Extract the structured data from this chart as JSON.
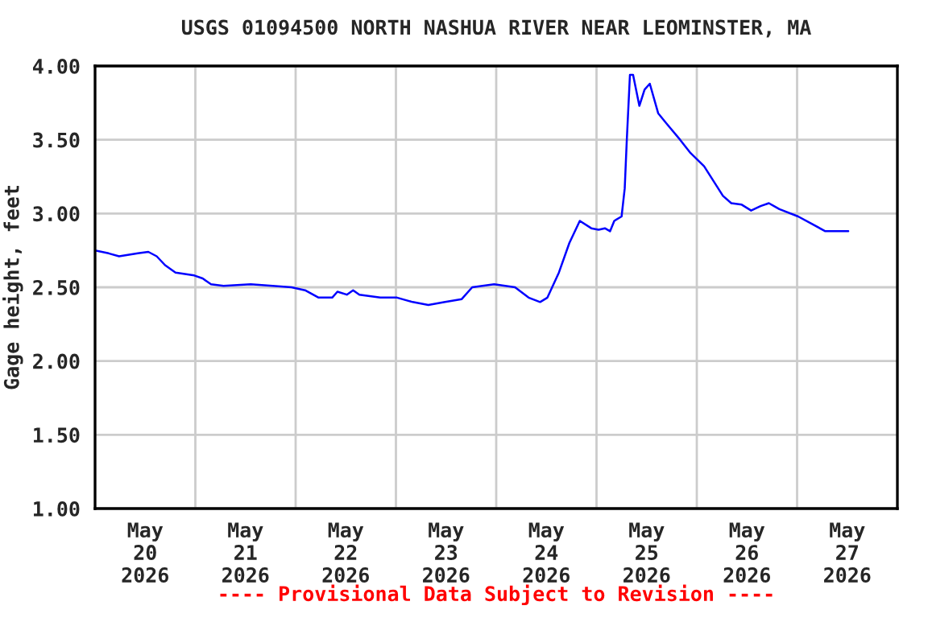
{
  "chart_data": {
    "type": "line",
    "title": "USGS 01094500 NORTH NASHUA RIVER NEAR LEOMINSTER, MA",
    "ylabel": "Gage height, feet",
    "annotations": [
      "---- Provisional Data Subject to Revision ----"
    ],
    "xlim": [
      "2026-05-20T00:00",
      "2026-05-28T00:00"
    ],
    "xticks": [
      {
        "value": "2026-05-20T12:00",
        "label": "May\n20\n2026"
      },
      {
        "value": "2026-05-21T12:00",
        "label": "May\n21\n2026"
      },
      {
        "value": "2026-05-22T12:00",
        "label": "May\n22\n2026"
      },
      {
        "value": "2026-05-23T12:00",
        "label": "May\n23\n2026"
      },
      {
        "value": "2026-05-24T12:00",
        "label": "May\n24\n2026"
      },
      {
        "value": "2026-05-25T12:00",
        "label": "May\n25\n2026"
      },
      {
        "value": "2026-05-26T12:00",
        "label": "May\n26\n2026"
      },
      {
        "value": "2026-05-27T12:00",
        "label": "May\n27\n2026"
      },
      {
        "value": "2026-05-21T00:00",
        "label": null
      },
      {
        "value": "2026-05-22T00:00",
        "label": null
      },
      {
        "value": "2026-05-23T00:00",
        "label": null
      },
      {
        "value": "2026-05-24T00:00",
        "label": null
      },
      {
        "value": "2026-05-25T00:00",
        "label": null
      },
      {
        "value": "2026-05-26T00:00",
        "label": null
      },
      {
        "value": "2026-05-27T00:00",
        "label": null
      }
    ],
    "ylim": [
      1.0,
      4.0
    ],
    "yticks": [
      {
        "value": 1.0,
        "label": "1.00"
      },
      {
        "value": 1.5,
        "label": "1.50"
      },
      {
        "value": 2.0,
        "label": "2.00"
      },
      {
        "value": 2.5,
        "label": "2.50"
      },
      {
        "value": 3.0,
        "label": "3.00"
      },
      {
        "value": 3.5,
        "label": "3.50"
      },
      {
        "value": 4.0,
        "label": "4.00"
      }
    ],
    "grid": true,
    "legend": false,
    "marker": "none",
    "line_style": "solid",
    "series": [
      {
        "color": "#0000ff",
        "x": [
          "2026-05-20T00:00",
          "2026-05-20T03:15",
          "2026-05-20T05:45",
          "2026-05-20T10:15",
          "2026-05-20T12:45",
          "2026-05-20T14:45",
          "2026-05-20T16:45",
          "2026-05-20T19:15",
          "2026-05-20T23:45",
          "2026-05-21T01:45",
          "2026-05-21T03:45",
          "2026-05-21T06:45",
          "2026-05-21T13:15",
          "2026-05-21T18:30",
          "2026-05-21T23:00",
          "2026-05-22T02:15",
          "2026-05-22T05:30",
          "2026-05-22T08:45",
          "2026-05-22T10:00",
          "2026-05-22T12:15",
          "2026-05-22T13:45",
          "2026-05-22T15:15",
          "2026-05-22T20:15",
          "2026-05-23T00:15",
          "2026-05-23T04:00",
          "2026-05-23T07:45",
          "2026-05-23T11:45",
          "2026-05-23T15:45",
          "2026-05-23T18:15",
          "2026-05-23T23:30",
          "2026-05-24T04:30",
          "2026-05-24T07:45",
          "2026-05-24T10:30",
          "2026-05-24T12:15",
          "2026-05-24T15:00",
          "2026-05-24T17:30",
          "2026-05-24T20:00",
          "2026-05-24T22:45",
          "2026-05-25T00:30",
          "2026-05-25T02:00",
          "2026-05-25T03:15",
          "2026-05-25T04:15",
          "2026-05-25T06:00",
          "2026-05-25T06:45",
          "2026-05-25T07:15",
          "2026-05-25T08:00",
          "2026-05-25T08:45",
          "2026-05-25T10:15",
          "2026-05-25T11:30",
          "2026-05-25T12:45",
          "2026-05-25T14:45",
          "2026-05-25T16:45",
          "2026-05-25T20:00",
          "2026-05-25T22:30",
          "2026-05-26T01:45",
          "2026-05-26T06:15",
          "2026-05-26T08:15",
          "2026-05-26T10:45",
          "2026-05-26T13:00",
          "2026-05-26T15:15",
          "2026-05-26T17:15",
          "2026-05-26T19:45",
          "2026-05-27T00:15",
          "2026-05-27T03:30",
          "2026-05-27T06:45",
          "2026-05-27T09:30",
          "2026-05-27T12:15"
        ],
        "values": [
          2.75,
          2.73,
          2.71,
          2.73,
          2.74,
          2.71,
          2.65,
          2.6,
          2.58,
          2.56,
          2.52,
          2.51,
          2.52,
          2.51,
          2.5,
          2.48,
          2.43,
          2.43,
          2.47,
          2.45,
          2.48,
          2.45,
          2.43,
          2.43,
          2.4,
          2.38,
          2.4,
          2.42,
          2.5,
          2.52,
          2.5,
          2.43,
          2.4,
          2.43,
          2.6,
          2.8,
          2.95,
          2.9,
          2.89,
          2.9,
          2.88,
          2.95,
          2.98,
          3.17,
          3.5,
          3.94,
          3.94,
          3.73,
          3.84,
          3.88,
          3.68,
          3.61,
          3.5,
          3.41,
          3.32,
          3.12,
          3.07,
          3.06,
          3.02,
          3.05,
          3.07,
          3.03,
          2.98,
          2.93,
          2.88,
          2.88,
          2.88
        ]
      }
    ]
  }
}
